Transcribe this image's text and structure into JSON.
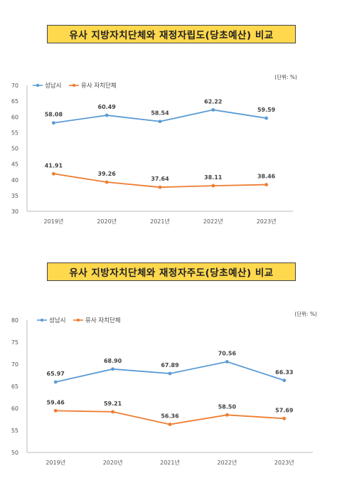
{
  "chart_data": [
    {
      "type": "line",
      "title": "유사 지방자치단체와 재정자립도(당초예산) 비교",
      "unit": "(단위: %)",
      "categories": [
        "2019년",
        "2020년",
        "2021년",
        "2022년",
        "2023년"
      ],
      "ylim": [
        30,
        70
      ],
      "yticks": [
        "30",
        "35",
        "40",
        "45",
        "50",
        "55",
        "60",
        "65",
        "70"
      ],
      "grid": false,
      "legend_position": "top-left",
      "series": [
        {
          "name": "성남시",
          "color": "#5b9bd5",
          "values": [
            58.08,
            60.49,
            58.54,
            62.22,
            59.59
          ],
          "labels": [
            "58.08",
            "60.49",
            "58.54",
            "62.22",
            "59.59"
          ]
        },
        {
          "name": "유사 자치단체",
          "color": "#ed7d31",
          "values": [
            41.91,
            39.26,
            37.64,
            38.11,
            38.46
          ],
          "labels": [
            "41.91",
            "39.26",
            "37.64",
            "38.11",
            "38.46"
          ]
        }
      ]
    },
    {
      "type": "line",
      "title": "유사 지방자치단체와 재정자주도(당초예산) 비교",
      "unit": "(단위: %)",
      "categories": [
        "2019년",
        "2020년",
        "2021년",
        "2022년",
        "2023년"
      ],
      "ylim": [
        50,
        80
      ],
      "yticks": [
        "50",
        "55",
        "60",
        "65",
        "70",
        "75",
        "80"
      ],
      "grid": false,
      "legend_position": "top-left",
      "series": [
        {
          "name": "성남시",
          "color": "#5b9bd5",
          "values": [
            65.97,
            68.9,
            67.89,
            70.56,
            66.33
          ],
          "labels": [
            "65.97",
            "68.90",
            "67.89",
            "70.56",
            "66.33"
          ]
        },
        {
          "name": "유사 자치단체",
          "color": "#ed7d31",
          "values": [
            59.46,
            59.21,
            56.36,
            58.5,
            57.69
          ],
          "labels": [
            "59.46",
            "59.21",
            "56.36",
            "58.50",
            "57.69"
          ]
        }
      ]
    }
  ]
}
